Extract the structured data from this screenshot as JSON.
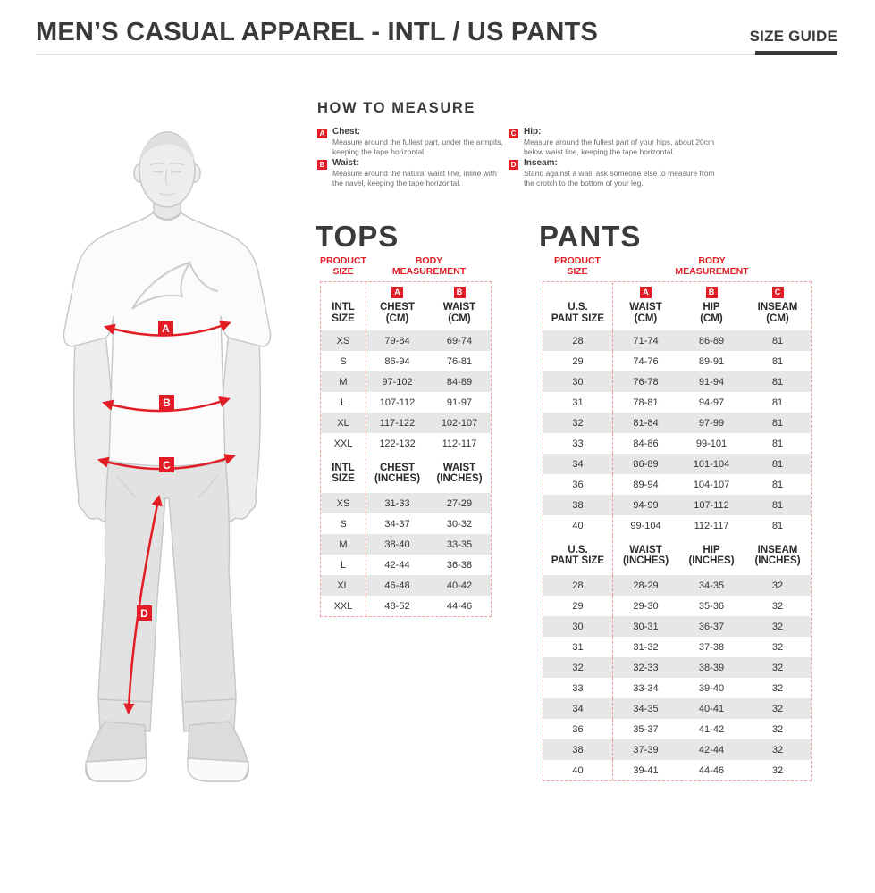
{
  "page": {
    "title": "MEN’S CASUAL APPAREL - INTL / US PANTS",
    "size_guide_label": "SIZE GUIDE"
  },
  "colors": {
    "accent_red": "#e21d25",
    "table_border_red": "#f09f9d",
    "heading_dark": "#3a3a3b",
    "row_alt_gray": "#e7e7e8",
    "body_text_gray": "#6d6e70"
  },
  "how_to_measure": {
    "title": "HOW TO MEASURE",
    "items": [
      {
        "letter": "A",
        "label": "Chest:",
        "text": "Measure around the fullest part, under the armpits, keeping the tape horizontal."
      },
      {
        "letter": "B",
        "label": "Waist:",
        "text": "Measure around the natural waist line, inline with the navel, keeping the tape horizontal."
      },
      {
        "letter": "C",
        "label": "Hip:",
        "text": "Measure around the fullest part of your hips, about 20cm below waist line, keeping the tape horizontal."
      },
      {
        "letter": "D",
        "label": "Inseam:",
        "text": "Stand against a wall, ask someone else to measure from the crotch to the bottom of your leg."
      }
    ]
  },
  "figure": {
    "labels": [
      "A",
      "B",
      "C",
      "D"
    ]
  },
  "tops": {
    "heading": "TOPS",
    "product_size_label": "PRODUCT\nSIZE",
    "body_measurement_label": "BODY\nMEASUREMENT",
    "cm": {
      "size_header": "INTL\nSIZE",
      "columns": [
        {
          "badge": "A",
          "label": "CHEST\n(CM)"
        },
        {
          "badge": "B",
          "label": "WAIST\n(CM)"
        }
      ],
      "rows": [
        [
          "XS",
          "79-84",
          "69-74"
        ],
        [
          "S",
          "86-94",
          "76-81"
        ],
        [
          "M",
          "97-102",
          "84-89"
        ],
        [
          "L",
          "107-112",
          "91-97"
        ],
        [
          "XL",
          "117-122",
          "102-107"
        ],
        [
          "XXL",
          "122-132",
          "112-117"
        ]
      ]
    },
    "inches": {
      "size_header": "INTL\nSIZE",
      "columns": [
        {
          "label": "CHEST\n(INCHES)"
        },
        {
          "label": "WAIST\n(INCHES)"
        }
      ],
      "rows": [
        [
          "XS",
          "31-33",
          "27-29"
        ],
        [
          "S",
          "34-37",
          "30-32"
        ],
        [
          "M",
          "38-40",
          "33-35"
        ],
        [
          "L",
          "42-44",
          "36-38"
        ],
        [
          "XL",
          "46-48",
          "40-42"
        ],
        [
          "XXL",
          "48-52",
          "44-46"
        ]
      ]
    }
  },
  "pants": {
    "heading": "PANTS",
    "product_size_label": "PRODUCT\nSIZE",
    "body_measurement_label": "BODY\nMEASUREMENT",
    "cm": {
      "size_header": "U.S.\nPANT SIZE",
      "columns": [
        {
          "badge": "A",
          "label": "WAIST\n(CM)"
        },
        {
          "badge": "B",
          "label": "HIP\n(CM)"
        },
        {
          "badge": "C",
          "label": "INSEAM\n(CM)"
        }
      ],
      "rows": [
        [
          "28",
          "71-74",
          "86-89",
          "81"
        ],
        [
          "29",
          "74-76",
          "89-91",
          "81"
        ],
        [
          "30",
          "76-78",
          "91-94",
          "81"
        ],
        [
          "31",
          "78-81",
          "94-97",
          "81"
        ],
        [
          "32",
          "81-84",
          "97-99",
          "81"
        ],
        [
          "33",
          "84-86",
          "99-101",
          "81"
        ],
        [
          "34",
          "86-89",
          "101-104",
          "81"
        ],
        [
          "36",
          "89-94",
          "104-107",
          "81"
        ],
        [
          "38",
          "94-99",
          "107-112",
          "81"
        ],
        [
          "40",
          "99-104",
          "112-117",
          "81"
        ]
      ]
    },
    "inches": {
      "size_header": "U.S.\nPANT SIZE",
      "columns": [
        {
          "label": "WAIST\n(INCHES)"
        },
        {
          "label": "HIP\n(INCHES)"
        },
        {
          "label": "INSEAM\n(INCHES)"
        }
      ],
      "rows": [
        [
          "28",
          "28-29",
          "34-35",
          "32"
        ],
        [
          "29",
          "29-30",
          "35-36",
          "32"
        ],
        [
          "30",
          "30-31",
          "36-37",
          "32"
        ],
        [
          "31",
          "31-32",
          "37-38",
          "32"
        ],
        [
          "32",
          "32-33",
          "38-39",
          "32"
        ],
        [
          "33",
          "33-34",
          "39-40",
          "32"
        ],
        [
          "34",
          "34-35",
          "40-41",
          "32"
        ],
        [
          "36",
          "35-37",
          "41-42",
          "32"
        ],
        [
          "38",
          "37-39",
          "42-44",
          "32"
        ],
        [
          "40",
          "39-41",
          "44-46",
          "32"
        ]
      ]
    }
  }
}
